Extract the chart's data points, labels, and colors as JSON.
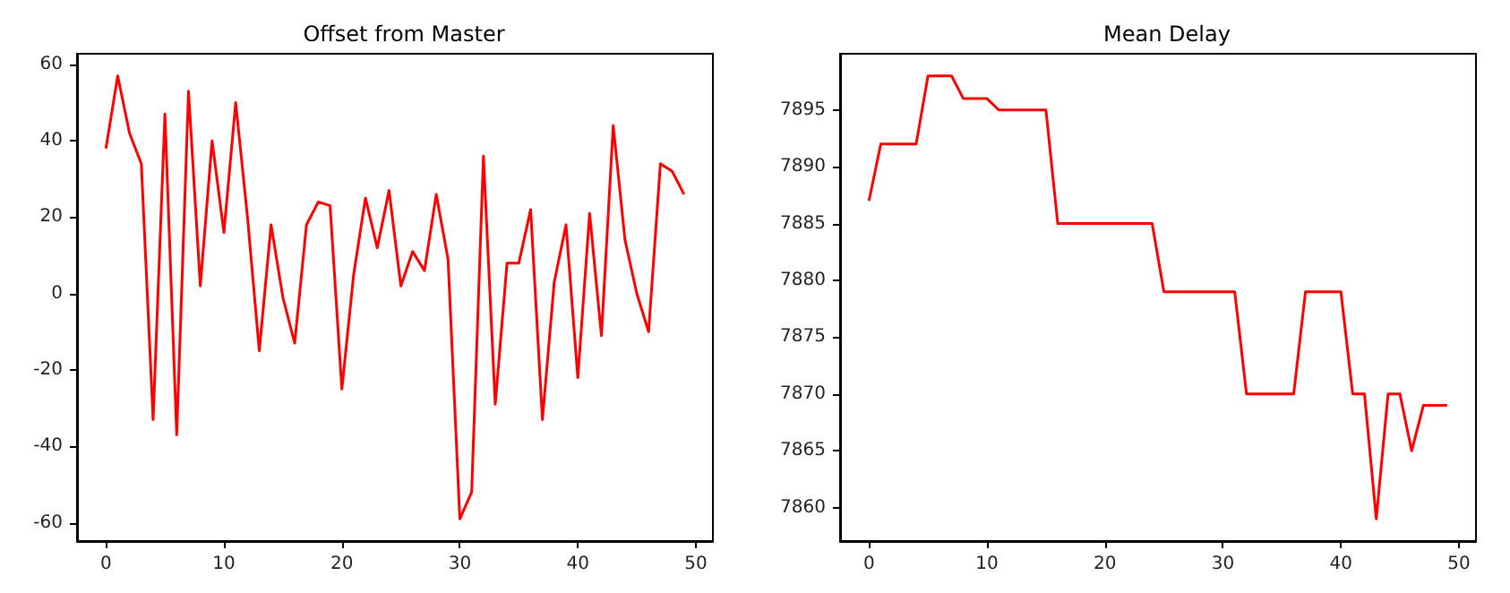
{
  "chart_data": [
    {
      "type": "line",
      "title": "Offset from Master",
      "x": [
        0,
        1,
        2,
        3,
        4,
        5,
        6,
        7,
        8,
        9,
        10,
        11,
        12,
        13,
        14,
        15,
        16,
        17,
        18,
        19,
        20,
        21,
        22,
        23,
        24,
        25,
        26,
        27,
        28,
        29,
        30,
        31,
        32,
        33,
        34,
        35,
        36,
        37,
        38,
        39,
        40,
        41,
        42,
        43,
        44,
        45,
        46,
        47,
        48,
        49
      ],
      "series": [
        {
          "color": "#ff0000",
          "values": [
            38,
            57,
            42,
            34,
            -33,
            47,
            -37,
            53,
            2,
            40,
            16,
            50,
            20,
            -15,
            18,
            -1,
            -13,
            18,
            24,
            23,
            -25,
            5,
            25,
            12,
            27,
            2,
            11,
            6,
            26,
            9,
            -59,
            -52,
            36,
            -29,
            8,
            8,
            22,
            -33,
            3,
            18,
            -22,
            21,
            -11,
            44,
            14,
            0,
            -10,
            34,
            32,
            26
          ]
        }
      ],
      "xlim": [
        -2.45,
        51.45
      ],
      "xticks": [
        0,
        10,
        20,
        30,
        40,
        50
      ],
      "ylim": [
        -64.8,
        62.8
      ],
      "yticks": [
        -60,
        -40,
        -20,
        0,
        20,
        40,
        60
      ],
      "grid": false,
      "marker": "none",
      "line_style": "solid"
    },
    {
      "type": "line",
      "title": "Mean Delay",
      "x": [
        0,
        1,
        2,
        3,
        4,
        5,
        6,
        7,
        8,
        9,
        10,
        11,
        12,
        13,
        14,
        15,
        16,
        17,
        18,
        19,
        20,
        21,
        22,
        23,
        24,
        25,
        26,
        27,
        28,
        29,
        30,
        31,
        32,
        33,
        34,
        35,
        36,
        37,
        38,
        39,
        40,
        41,
        42,
        43,
        44,
        45,
        46,
        47,
        48,
        49
      ],
      "series": [
        {
          "color": "#ff0000",
          "values": [
            7887,
            7892,
            7892,
            7892,
            7892,
            7898,
            7898,
            7898,
            7896,
            7896,
            7896,
            7895,
            7895,
            7895,
            7895,
            7895,
            7885,
            7885,
            7885,
            7885,
            7885,
            7885,
            7885,
            7885,
            7885,
            7879,
            7879,
            7879,
            7879,
            7879,
            7879,
            7879,
            7870,
            7870,
            7870,
            7870,
            7870,
            7879,
            7879,
            7879,
            7879,
            7870,
            7870,
            7859,
            7870,
            7870,
            7865,
            7869,
            7869,
            7869
          ]
        }
      ],
      "xlim": [
        -2.45,
        51.45
      ],
      "xticks": [
        0,
        10,
        20,
        30,
        40,
        50
      ],
      "ylim": [
        7857.05,
        7899.95
      ],
      "yticks": [
        7860,
        7865,
        7870,
        7875,
        7880,
        7885,
        7890,
        7895
      ],
      "grid": false,
      "marker": "none",
      "line_style": "solid"
    }
  ]
}
